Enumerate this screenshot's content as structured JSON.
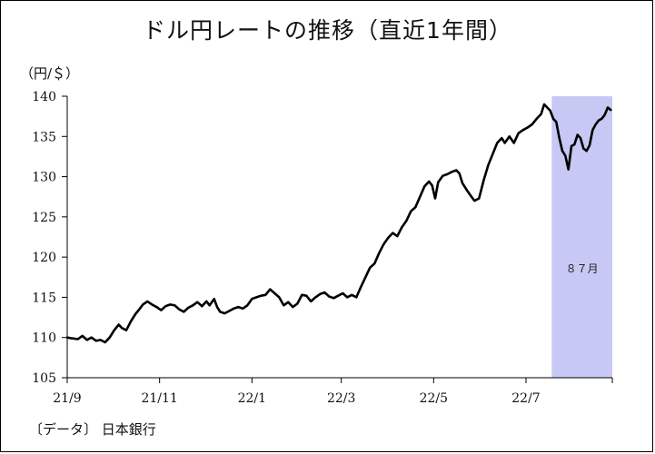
{
  "title": "ドル円レートの推移（直近1年間）",
  "unit_label": "（円/＄）",
  "source_label": "〔データ〕 日本銀行",
  "chart_data": {
    "type": "line",
    "xlabel": "",
    "ylabel": "",
    "ylim": [
      105,
      140
    ],
    "yticks": [
      105,
      110,
      115,
      120,
      125,
      130,
      135,
      140
    ],
    "xtick_labels": [
      "21/9",
      "21/11",
      "22/1",
      "22/3",
      "22/5",
      "22/7"
    ],
    "xlim": [
      0,
      360
    ],
    "xtick_positions": [
      0,
      61,
      122,
      181,
      242,
      303
    ],
    "grid": false,
    "series_color": "#000000",
    "shade_color": "#c8c8f5",
    "shade_range": [
      320,
      360
    ],
    "shade_label": "８７月",
    "series": [
      {
        "values": [
          [
            0,
            110.0
          ],
          [
            3,
            109.9
          ],
          [
            7,
            109.8
          ],
          [
            10,
            110.2
          ],
          [
            13,
            109.7
          ],
          [
            16,
            110.0
          ],
          [
            19,
            109.6
          ],
          [
            22,
            109.7
          ],
          [
            25,
            109.4
          ],
          [
            28,
            110.0
          ],
          [
            31,
            110.9
          ],
          [
            34,
            111.6
          ],
          [
            36,
            111.2
          ],
          [
            39,
            110.9
          ],
          [
            42,
            112.0
          ],
          [
            45,
            112.9
          ],
          [
            48,
            113.6
          ],
          [
            50,
            114.1
          ],
          [
            53,
            114.5
          ],
          [
            56,
            114.1
          ],
          [
            59,
            113.8
          ],
          [
            62,
            113.4
          ],
          [
            65,
            113.9
          ],
          [
            68,
            114.1
          ],
          [
            71,
            114.0
          ],
          [
            74,
            113.5
          ],
          [
            77,
            113.2
          ],
          [
            80,
            113.7
          ],
          [
            83,
            114.0
          ],
          [
            86,
            114.4
          ],
          [
            89,
            113.9
          ],
          [
            92,
            114.5
          ],
          [
            94,
            114.0
          ],
          [
            97,
            114.8
          ],
          [
            99,
            113.8
          ],
          [
            101,
            113.2
          ],
          [
            104,
            113.0
          ],
          [
            107,
            113.3
          ],
          [
            110,
            113.6
          ],
          [
            113,
            113.8
          ],
          [
            116,
            113.6
          ],
          [
            119,
            114.0
          ],
          [
            122,
            114.8
          ],
          [
            125,
            115.0
          ],
          [
            128,
            115.2
          ],
          [
            131,
            115.3
          ],
          [
            134,
            116.0
          ],
          [
            137,
            115.5
          ],
          [
            140,
            115.0
          ],
          [
            143,
            114.0
          ],
          [
            146,
            114.4
          ],
          [
            149,
            113.8
          ],
          [
            152,
            114.2
          ],
          [
            155,
            115.3
          ],
          [
            158,
            115.2
          ],
          [
            161,
            114.5
          ],
          [
            164,
            115.0
          ],
          [
            167,
            115.4
          ],
          [
            170,
            115.6
          ],
          [
            173,
            115.1
          ],
          [
            176,
            114.9
          ],
          [
            179,
            115.2
          ],
          [
            182,
            115.5
          ],
          [
            185,
            115.0
          ],
          [
            188,
            115.3
          ],
          [
            191,
            115.0
          ],
          [
            194,
            116.3
          ],
          [
            197,
            117.5
          ],
          [
            200,
            118.7
          ],
          [
            203,
            119.2
          ],
          [
            206,
            120.5
          ],
          [
            209,
            121.6
          ],
          [
            212,
            122.4
          ],
          [
            215,
            123.0
          ],
          [
            218,
            122.6
          ],
          [
            221,
            123.7
          ],
          [
            224,
            124.5
          ],
          [
            227,
            125.7
          ],
          [
            230,
            126.2
          ],
          [
            233,
            127.5
          ],
          [
            236,
            128.8
          ],
          [
            239,
            129.4
          ],
          [
            241,
            128.9
          ],
          [
            243,
            127.3
          ],
          [
            245,
            129.3
          ],
          [
            248,
            130.1
          ],
          [
            251,
            130.3
          ],
          [
            254,
            130.6
          ],
          [
            257,
            130.8
          ],
          [
            259,
            130.4
          ],
          [
            261,
            129.2
          ],
          [
            264,
            128.3
          ],
          [
            267,
            127.5
          ],
          [
            269,
            127.0
          ],
          [
            272,
            127.3
          ],
          [
            275,
            129.5
          ],
          [
            278,
            131.4
          ],
          [
            281,
            132.8
          ],
          [
            284,
            134.2
          ],
          [
            287,
            134.8
          ],
          [
            289,
            134.2
          ],
          [
            292,
            135.0
          ],
          [
            295,
            134.2
          ],
          [
            298,
            135.4
          ],
          [
            301,
            135.8
          ],
          [
            304,
            136.1
          ],
          [
            307,
            136.5
          ],
          [
            310,
            137.2
          ],
          [
            313,
            137.8
          ],
          [
            315,
            139.0
          ],
          [
            317,
            138.6
          ],
          [
            319,
            138.2
          ],
          [
            321,
            137.2
          ],
          [
            323,
            136.8
          ],
          [
            325,
            134.8
          ],
          [
            327,
            133.2
          ],
          [
            329,
            132.6
          ],
          [
            331,
            130.9
          ],
          [
            333,
            133.8
          ],
          [
            335,
            134.0
          ],
          [
            337,
            135.2
          ],
          [
            339,
            134.8
          ],
          [
            341,
            133.5
          ],
          [
            343,
            133.2
          ],
          [
            345,
            133.9
          ],
          [
            347,
            135.8
          ],
          [
            349,
            136.5
          ],
          [
            351,
            137.0
          ],
          [
            353,
            137.2
          ],
          [
            355,
            137.7
          ],
          [
            357,
            138.6
          ],
          [
            359,
            138.3
          ]
        ]
      }
    ]
  }
}
